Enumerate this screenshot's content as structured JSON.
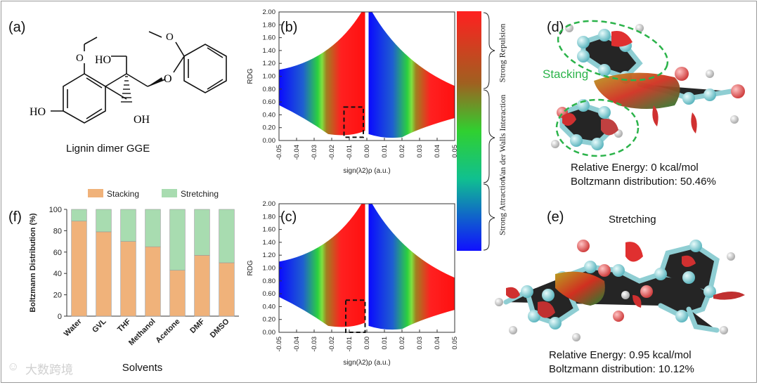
{
  "panel_labels": {
    "a": "(a)",
    "b": "(b)",
    "c": "(c)",
    "d": "(d)",
    "e": "(e)",
    "f": "(f)"
  },
  "molecule": {
    "caption": "Lignin dimer GGE",
    "atoms": {
      "ho_top": "HO",
      "ho_left": "HO",
      "o_ether": "O",
      "oh_bottom": "OH"
    }
  },
  "rdg": {
    "ylabel": "RDG",
    "xlabel": "sign(λ2)ρ (a.u.)",
    "y_ticks": [
      "0.00",
      "0.20",
      "0.40",
      "0.60",
      "0.80",
      "1.00",
      "1.20",
      "1.40",
      "1.60",
      "1.80",
      "2.00"
    ],
    "x_ticks": [
      "-0.05",
      "-0.04",
      "-0.03",
      "-0.02",
      "-0.01",
      "0.00",
      "0.01",
      "0.02",
      "0.03",
      "0.04",
      "0.05"
    ],
    "xlim": [
      -0.05,
      0.05
    ],
    "ylim": [
      0,
      2.0
    ],
    "box_b": {
      "x0": -0.013,
      "x1": -0.002,
      "y0": 0.05,
      "y1": 0.52
    },
    "box_c": {
      "x0": -0.012,
      "x1": -0.001,
      "y0": 0.0,
      "y1": 0.5
    }
  },
  "colorbar": {
    "labels": [
      "Strong Repulsion",
      "Van der Walls Interaction",
      "Strong Attraction"
    ],
    "colors": {
      "top": "#ff2020",
      "mid": "#20e020",
      "bottom": "#1010ff"
    }
  },
  "panel_d": {
    "tag": "Stacking",
    "energy": "Relative Energy: 0 kcal/mol",
    "boltzmann": "Boltzmann distribution: 50.46%"
  },
  "panel_e": {
    "tag": "Stretching",
    "energy": "Relative Energy: 0.95 kcal/mol",
    "boltzmann": "Boltzmann distribution: 10.12%"
  },
  "watermark": "大数跨境",
  "chart_data": {
    "type": "bar",
    "stacked": true,
    "categories": [
      "Water",
      "GVL",
      "THF",
      "Methanol",
      "Acetone",
      "DMF",
      "DMSO"
    ],
    "series": [
      {
        "name": "Stacking",
        "values": [
          89,
          79,
          70,
          65,
          43,
          57,
          50
        ],
        "color": "#f0b27a"
      },
      {
        "name": "Stretching",
        "values": [
          11,
          21,
          30,
          35,
          57,
          43,
          50
        ],
        "color": "#a8dcb0"
      }
    ],
    "ylabel": "Boltzmann Distribution (%)",
    "xlabel": "Solvents",
    "ylim": [
      0,
      100
    ],
    "yticks": [
      "0",
      "20",
      "40",
      "60",
      "80",
      "100"
    ],
    "legend": "top"
  }
}
